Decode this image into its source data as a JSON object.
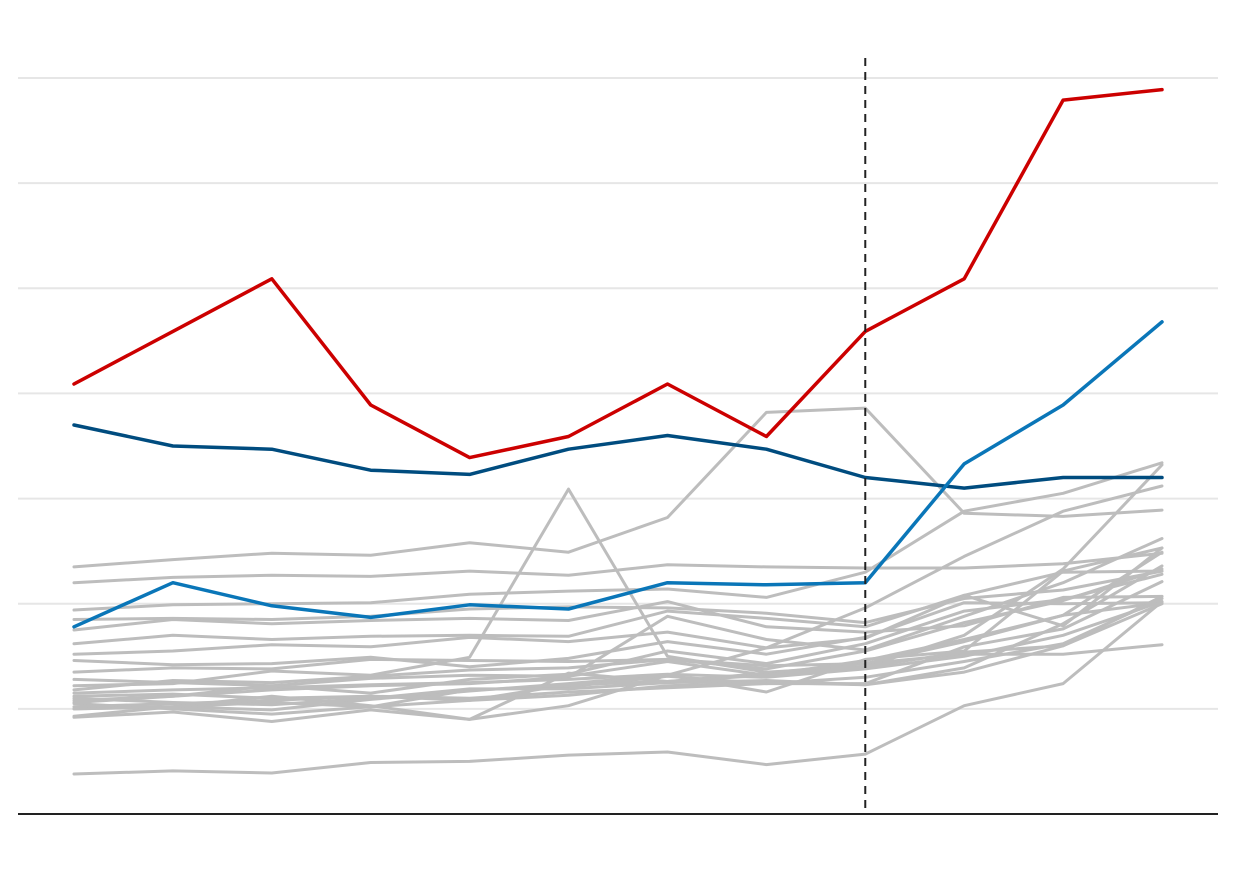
{
  "chart_data": {
    "type": "line",
    "title": "",
    "xlabel": "",
    "ylabel": "",
    "x": [
      1,
      2,
      3,
      4,
      5,
      6,
      7,
      8,
      9,
      10,
      11,
      12
    ],
    "ylim": [
      0,
      7
    ],
    "yticks": [
      1,
      2,
      3,
      4,
      5,
      6,
      7
    ],
    "grid": true,
    "vline_at": 9,
    "colors": {
      "background": "#grey",
      "grid": "#e6e6e6",
      "axis": "#222222",
      "vline": "#222222"
    },
    "background_series": [
      [
        1.35,
        1.39,
        1.38,
        1.47,
        1.46,
        1.45,
        1.47,
        1.41,
        1.43,
        1.52,
        1.52,
        1.61
      ],
      [
        0.38,
        0.41,
        0.39,
        0.49,
        0.5,
        0.56,
        0.59,
        0.47,
        0.57,
        1.03,
        1.24,
        2.02
      ],
      [
        2.35,
        2.42,
        2.48,
        2.46,
        2.58,
        2.49,
        2.82,
        3.82,
        3.86,
        2.86,
        2.83,
        2.89
      ],
      [
        1.22,
        1.24,
        1.36,
        1.32,
        1.49,
        3.09,
        1.5,
        1.35,
        1.4,
        1.7,
        2.33,
        3.32
      ],
      [
        1.0,
        1.02,
        0.99,
        1.09,
        1.17,
        1.24,
        1.32,
        1.58,
        1.96,
        2.45,
        2.88,
        3.12
      ],
      [
        1.52,
        1.55,
        1.61,
        1.59,
        1.68,
        1.64,
        1.73,
        1.58,
        1.67,
        2.08,
        2.3,
        2.31
      ],
      [
        1.06,
        1.12,
        1.18,
        1.22,
        1.24,
        1.3,
        1.88,
        1.66,
        1.56,
        1.88,
        2.2,
        2.62
      ],
      [
        1.94,
        1.99,
        2.0,
        2.01,
        2.09,
        2.12,
        2.14,
        2.06,
        2.3,
        2.88,
        3.05,
        3.34
      ],
      [
        1.85,
        1.86,
        1.85,
        1.88,
        1.95,
        1.97,
        1.96,
        1.91,
        1.82,
        2.05,
        2.13,
        2.31
      ],
      [
        1.75,
        1.85,
        1.81,
        1.84,
        1.86,
        1.84,
        2.02,
        1.78,
        1.73,
        1.79,
        2.06,
        2.07
      ],
      [
        1.0,
        1.02,
        1.06,
        1.02,
        1.18,
        1.21,
        1.31,
        1.24,
        1.24,
        1.59,
        1.76,
        2.21
      ],
      [
        1.12,
        1.14,
        1.1,
        1.12,
        1.08,
        1.23,
        1.26,
        1.34,
        1.43,
        1.64,
        1.89,
        2.49
      ],
      [
        1.62,
        1.7,
        1.66,
        1.69,
        1.7,
        1.69,
        1.93,
        1.86,
        1.78,
        2.08,
        1.79,
        2.53
      ],
      [
        2.2,
        2.25,
        2.27,
        2.26,
        2.31,
        2.27,
        2.37,
        2.35,
        2.34,
        2.34,
        2.38,
        2.48
      ],
      [
        0.92,
        0.97,
        0.88,
        0.99,
        0.9,
        1.03,
        1.32,
        1.16,
        1.47,
        1.55,
        2.31,
        2.53
      ],
      [
        1.28,
        1.25,
        1.22,
        1.29,
        1.32,
        1.31,
        1.45,
        1.32,
        1.46,
        1.66,
        1.89,
        2.01
      ],
      [
        1.1,
        1.06,
        1.04,
        1.1,
        1.19,
        1.19,
        1.25,
        1.27,
        1.23,
        1.39,
        1.81,
        2.36
      ],
      [
        1.46,
        1.42,
        1.43,
        1.49,
        1.4,
        1.48,
        1.64,
        1.52,
        1.68,
        2.01,
        2.0,
        2.01
      ],
      [
        0.93,
        1.02,
        1.12,
        1.03,
        0.9,
        1.34,
        1.26,
        1.32,
        1.4,
        1.54,
        1.6,
        2.0
      ],
      [
        1.18,
        1.27,
        1.25,
        1.31,
        1.37,
        1.39,
        1.47,
        1.38,
        1.55,
        1.82,
        2.03,
        2.33
      ],
      [
        1.05,
        1.0,
        0.95,
        1.02,
        1.08,
        1.13,
        1.22,
        1.25,
        1.23,
        1.35,
        1.6,
        2.07
      ],
      [
        1.15,
        1.18,
        1.2,
        1.23,
        1.25,
        1.28,
        1.33,
        1.3,
        1.38,
        1.5,
        1.7,
        2.02
      ],
      [
        1.08,
        1.12,
        1.22,
        1.15,
        1.28,
        1.33,
        1.55,
        1.43,
        1.62,
        1.93,
        2.04,
        2.28
      ],
      [
        1.02,
        1.05,
        1.08,
        1.12,
        1.1,
        1.16,
        1.2,
        1.24,
        1.3,
        1.45,
        1.62,
        2.05
      ]
    ],
    "series": [
      {
        "color": "#cc0000",
        "values": [
          4.09,
          4.59,
          5.09,
          3.89,
          3.39,
          3.59,
          4.09,
          3.59,
          4.59,
          5.09,
          6.79,
          6.89
        ]
      },
      {
        "color": "#004c7f",
        "values": [
          3.7,
          3.5,
          3.47,
          3.27,
          3.23,
          3.47,
          3.6,
          3.47,
          3.2,
          3.1,
          3.2,
          3.2
        ]
      },
      {
        "color": "#0a76b8",
        "values": [
          1.78,
          2.2,
          1.98,
          1.87,
          1.99,
          1.95,
          2.2,
          2.18,
          2.2,
          3.33,
          3.89,
          4.68
        ]
      }
    ]
  }
}
